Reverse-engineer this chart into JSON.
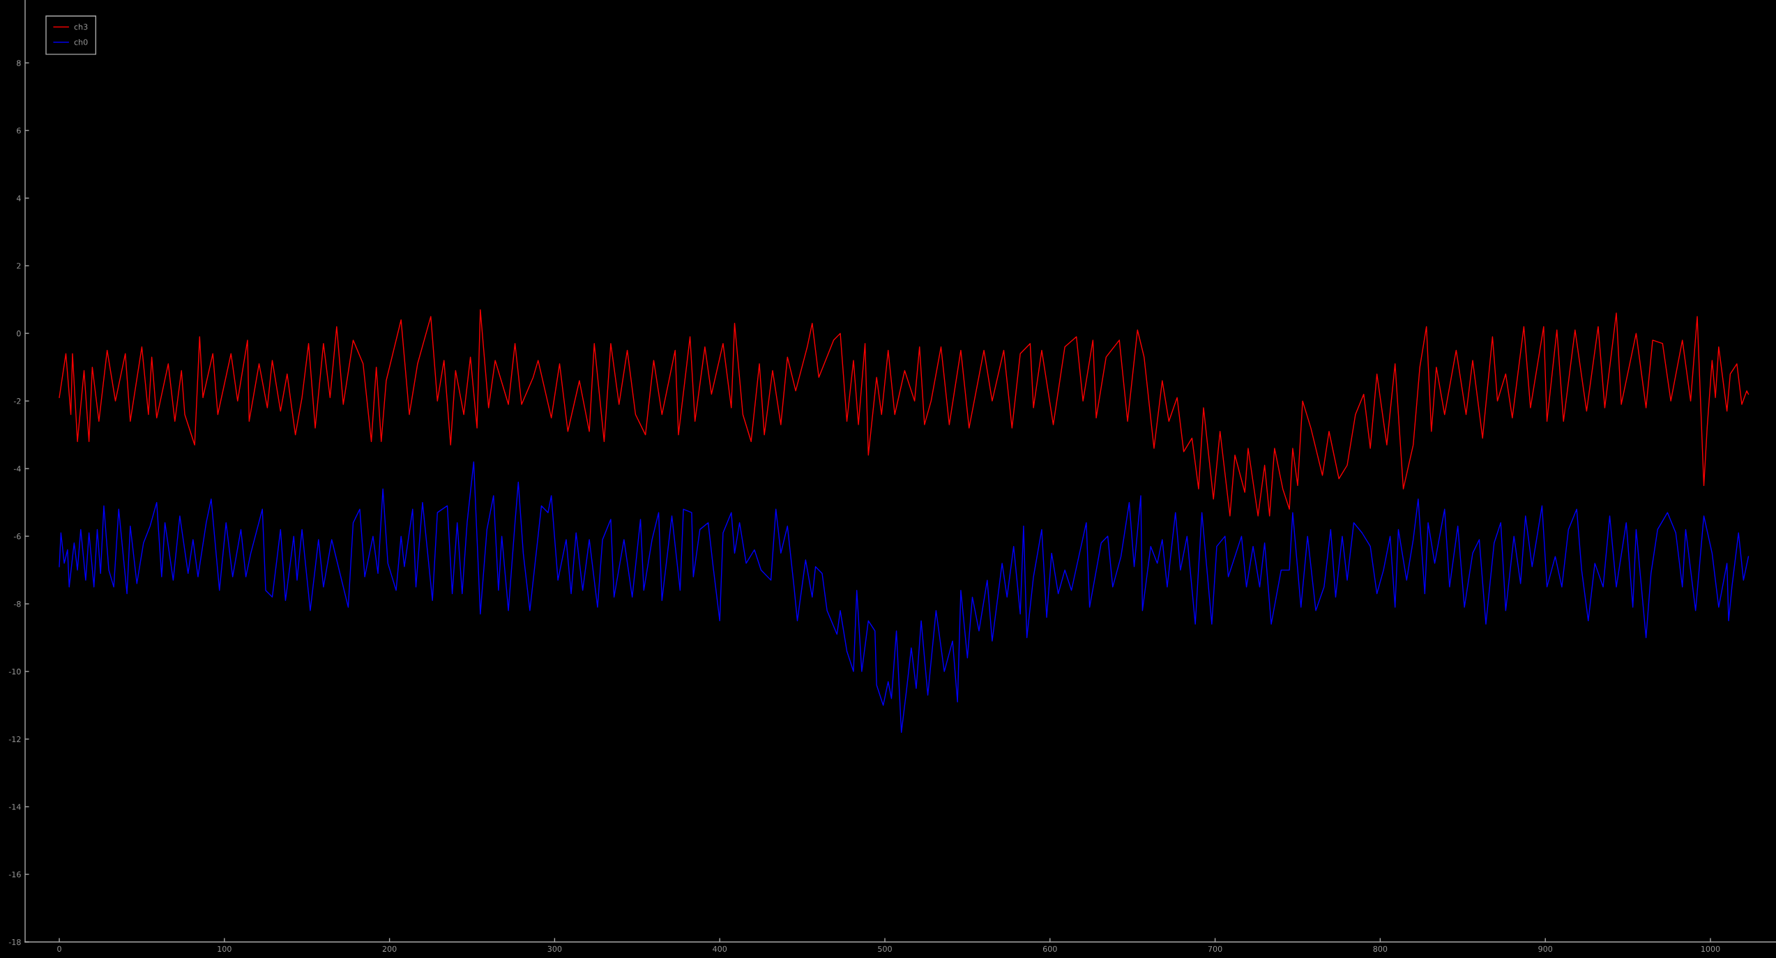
{
  "chart_data": {
    "type": "line",
    "series": [
      {
        "name": "ch3",
        "color": "#ff0000",
        "x": [
          0,
          4,
          7,
          8,
          11,
          15,
          18,
          20,
          24,
          29,
          34,
          40,
          43,
          50,
          54,
          56,
          59,
          66,
          70,
          74,
          76,
          82,
          85,
          87,
          93,
          96,
          104,
          108,
          114,
          115,
          121,
          126,
          129,
          134,
          138,
          143,
          147,
          151,
          155,
          160,
          164,
          168,
          172,
          178,
          184,
          189,
          192,
          195,
          198,
          207,
          212,
          217,
          225,
          229,
          233,
          237,
          240,
          245,
          249,
          253,
          255,
          260,
          264,
          272,
          276,
          280,
          287,
          290,
          298,
          303,
          308,
          315,
          321,
          324,
          330,
          334,
          339,
          344,
          349,
          355,
          360,
          365,
          373,
          375,
          382,
          385,
          391,
          395,
          402,
          407,
          409,
          414,
          419,
          424,
          427,
          432,
          437,
          441,
          446,
          453,
          456,
          460,
          469,
          473,
          477,
          481,
          484,
          488,
          490,
          495,
          498,
          502,
          506,
          512,
          518,
          521,
          524,
          528,
          534,
          539,
          546,
          551,
          560,
          565,
          572,
          577,
          582,
          588,
          590,
          595,
          602,
          609,
          616,
          620,
          626,
          628,
          634,
          642,
          647,
          653,
          657,
          663,
          668,
          672,
          677,
          681,
          686,
          690,
          693,
          699,
          703,
          709,
          712,
          718,
          720,
          726,
          730,
          733,
          736,
          741,
          745,
          747,
          750,
          753,
          758,
          765,
          769,
          775,
          780,
          785,
          790,
          794,
          798,
          804,
          809,
          814,
          820,
          824,
          828,
          831,
          834,
          839,
          846,
          852,
          856,
          862,
          868,
          871,
          876,
          880,
          887,
          891,
          899,
          901,
          907,
          911,
          918,
          925,
          932,
          936,
          943,
          946,
          955,
          961,
          965,
          971,
          976,
          983,
          988,
          992,
          996,
          998,
          1001,
          1003,
          1005,
          1010,
          1012,
          1016,
          1019,
          1022,
          1023
        ],
        "values": [
          -1.9,
          -0.6,
          -2.4,
          -0.6,
          -3.2,
          -1.1,
          -3.2,
          -1.0,
          -2.6,
          -0.5,
          -2.0,
          -0.6,
          -2.6,
          -0.4,
          -2.4,
          -0.7,
          -2.5,
          -0.9,
          -2.6,
          -1.1,
          -2.4,
          -3.3,
          -0.1,
          -1.9,
          -0.6,
          -2.4,
          -0.6,
          -2.0,
          -0.2,
          -2.6,
          -0.9,
          -2.2,
          -0.8,
          -2.3,
          -1.2,
          -3.0,
          -1.9,
          -0.3,
          -2.8,
          -0.3,
          -1.9,
          0.2,
          -2.1,
          -0.2,
          -0.9,
          -3.2,
          -1.0,
          -3.2,
          -1.4,
          0.4,
          -2.4,
          -0.9,
          0.5,
          -2.0,
          -0.8,
          -3.3,
          -1.1,
          -2.4,
          -0.7,
          -2.8,
          0.7,
          -2.2,
          -0.8,
          -2.1,
          -0.3,
          -2.1,
          -1.3,
          -0.8,
          -2.5,
          -0.9,
          -2.9,
          -1.4,
          -2.9,
          -0.3,
          -3.2,
          -0.3,
          -2.1,
          -0.5,
          -2.4,
          -3.0,
          -0.8,
          -2.4,
          -0.5,
          -3.0,
          -0.1,
          -2.6,
          -0.4,
          -1.8,
          -0.3,
          -2.2,
          0.3,
          -2.4,
          -3.2,
          -0.9,
          -3.0,
          -1.1,
          -2.7,
          -0.7,
          -1.7,
          -0.4,
          0.3,
          -1.3,
          -0.2,
          0.0,
          -2.6,
          -0.8,
          -2.7,
          -0.3,
          -3.6,
          -1.3,
          -2.4,
          -0.5,
          -2.4,
          -1.1,
          -2.0,
          -0.4,
          -2.7,
          -2.0,
          -0.4,
          -2.7,
          -0.5,
          -2.8,
          -0.5,
          -2.0,
          -0.5,
          -2.8,
          -0.6,
          -0.3,
          -2.2,
          -0.5,
          -2.7,
          -0.4,
          -0.1,
          -2.0,
          -0.2,
          -2.5,
          -0.7,
          -0.2,
          -2.6,
          0.1,
          -0.7,
          -3.4,
          -1.4,
          -2.6,
          -1.9,
          -3.5,
          -3.1,
          -4.6,
          -2.2,
          -4.9,
          -2.9,
          -5.4,
          -3.6,
          -4.7,
          -3.4,
          -5.4,
          -3.9,
          -5.4,
          -3.4,
          -4.6,
          -5.2,
          -3.4,
          -4.5,
          -2.0,
          -2.8,
          -4.2,
          -2.9,
          -4.3,
          -3.9,
          -2.4,
          -1.8,
          -3.4,
          -1.2,
          -3.3,
          -0.9,
          -4.6,
          -3.3,
          -1.0,
          0.2,
          -2.9,
          -1.0,
          -2.4,
          -0.5,
          -2.4,
          -0.8,
          -3.1,
          -0.1,
          -2.0,
          -1.2,
          -2.5,
          0.2,
          -2.2,
          0.2,
          -2.6,
          0.1,
          -2.6,
          0.1,
          -2.3,
          0.2,
          -2.2,
          0.6,
          -2.1,
          0.0,
          -2.2,
          -0.2,
          -0.3,
          -2.0,
          -0.2,
          -2.0,
          0.5,
          -4.5,
          -2.8,
          -0.8,
          -1.9,
          -0.4,
          -2.3,
          -1.2,
          -0.9,
          -2.1,
          -1.7,
          -1.8
        ]
      },
      {
        "name": "ch0",
        "color": "#0000ff",
        "x": [
          0,
          1,
          3,
          5,
          6,
          9,
          11,
          13,
          16,
          18,
          21,
          23,
          25,
          27,
          30,
          33,
          36,
          41,
          43,
          47,
          51,
          55,
          59,
          62,
          64,
          69,
          73,
          78,
          81,
          84,
          89,
          92,
          97,
          101,
          105,
          110,
          113,
          116,
          123,
          125,
          129,
          134,
          137,
          142,
          144,
          147,
          152,
          157,
          160,
          165,
          168,
          175,
          178,
          182,
          185,
          190,
          193,
          196,
          199,
          204,
          207,
          209,
          214,
          216,
          220,
          226,
          229,
          235,
          238,
          241,
          244,
          247,
          251,
          255,
          259,
          263,
          266,
          268,
          272,
          276,
          278,
          281,
          285,
          292,
          296,
          298,
          302,
          307,
          310,
          313,
          317,
          321,
          326,
          329,
          334,
          336,
          342,
          347,
          352,
          354,
          359,
          363,
          365,
          371,
          376,
          378,
          383,
          384,
          388,
          393,
          396,
          400,
          402,
          407,
          409,
          412,
          416,
          421,
          425,
          431,
          434,
          437,
          441,
          445,
          447,
          452,
          456,
          458,
          462,
          465,
          471,
          473,
          477,
          481,
          483,
          486,
          490,
          494,
          495,
          499,
          502,
          504,
          507,
          510,
          513,
          516,
          519,
          522,
          526,
          531,
          536,
          541,
          544,
          546,
          550,
          553,
          557,
          562,
          565,
          571,
          574,
          578,
          582,
          584,
          586,
          590,
          595,
          598,
          601,
          605,
          609,
          613,
          617,
          622,
          624,
          631,
          635,
          638,
          643,
          648,
          651,
          655,
          656,
          661,
          665,
          668,
          671,
          676,
          679,
          683,
          688,
          692,
          698,
          701,
          706,
          708,
          716,
          719,
          723,
          727,
          730,
          734,
          740,
          745,
          747,
          752,
          756,
          761,
          766,
          770,
          773,
          777,
          780,
          784,
          789,
          794,
          798,
          802,
          806,
          809,
          811,
          816,
          820,
          823,
          827,
          829,
          833,
          839,
          842,
          847,
          851,
          856,
          860,
          864,
          869,
          873,
          876,
          881,
          885,
          888,
          892,
          898,
          901,
          906,
          910,
          914,
          919,
          922,
          926,
          930,
          935,
          939,
          943,
          949,
          953,
          955,
          961,
          964,
          968,
          974,
          979,
          983,
          985,
          991,
          996,
          1001,
          1005,
          1010,
          1011,
          1013,
          1017,
          1020,
          1023
        ],
        "values": [
          -6.9,
          -5.9,
          -6.8,
          -6.4,
          -7.5,
          -6.2,
          -7.0,
          -5.8,
          -7.3,
          -5.9,
          -7.5,
          -5.8,
          -7.1,
          -5.1,
          -7.0,
          -7.5,
          -5.2,
          -7.7,
          -5.7,
          -7.4,
          -6.2,
          -5.7,
          -5.0,
          -7.2,
          -5.6,
          -7.3,
          -5.4,
          -7.1,
          -6.1,
          -7.2,
          -5.6,
          -4.9,
          -7.6,
          -5.6,
          -7.2,
          -5.8,
          -7.2,
          -6.5,
          -5.2,
          -7.6,
          -7.8,
          -5.8,
          -7.9,
          -6.0,
          -7.3,
          -5.8,
          -8.2,
          -6.1,
          -7.5,
          -6.1,
          -6.7,
          -8.1,
          -5.6,
          -5.2,
          -7.2,
          -6.0,
          -7.1,
          -4.6,
          -6.8,
          -7.6,
          -6.0,
          -6.9,
          -5.2,
          -7.5,
          -5.0,
          -7.9,
          -5.3,
          -5.1,
          -7.7,
          -5.6,
          -7.7,
          -5.6,
          -3.8,
          -8.3,
          -5.8,
          -4.8,
          -7.6,
          -6.0,
          -8.2,
          -5.6,
          -4.4,
          -6.5,
          -8.2,
          -5.1,
          -5.3,
          -4.8,
          -7.3,
          -6.1,
          -7.7,
          -5.9,
          -7.6,
          -6.1,
          -8.1,
          -6.1,
          -5.5,
          -7.8,
          -6.1,
          -7.8,
          -5.5,
          -7.6,
          -6.1,
          -5.3,
          -7.9,
          -5.4,
          -7.6,
          -5.2,
          -5.3,
          -7.2,
          -5.8,
          -5.6,
          -6.9,
          -8.5,
          -5.9,
          -5.3,
          -6.5,
          -5.6,
          -6.8,
          -6.4,
          -7.0,
          -7.3,
          -5.2,
          -6.5,
          -5.7,
          -7.5,
          -8.5,
          -6.7,
          -7.8,
          -6.9,
          -7.1,
          -8.2,
          -8.9,
          -8.2,
          -9.4,
          -10.0,
          -7.6,
          -10.0,
          -8.5,
          -8.8,
          -10.4,
          -11.0,
          -10.3,
          -10.8,
          -8.8,
          -11.8,
          -10.6,
          -9.3,
          -10.5,
          -8.5,
          -10.7,
          -8.2,
          -10.0,
          -9.1,
          -10.9,
          -7.6,
          -9.6,
          -7.8,
          -8.8,
          -7.3,
          -9.1,
          -6.8,
          -7.8,
          -6.3,
          -8.3,
          -5.7,
          -9.0,
          -7.2,
          -5.8,
          -8.4,
          -6.5,
          -7.7,
          -7.0,
          -7.6,
          -6.7,
          -5.6,
          -8.1,
          -6.2,
          -6.0,
          -7.5,
          -6.6,
          -5.0,
          -6.9,
          -4.8,
          -8.2,
          -6.3,
          -6.8,
          -6.1,
          -7.5,
          -5.3,
          -7.0,
          -6.0,
          -8.6,
          -5.3,
          -8.6,
          -6.3,
          -6.0,
          -7.2,
          -6.0,
          -7.5,
          -6.3,
          -7.5,
          -6.2,
          -8.6,
          -7.0,
          -7.0,
          -5.3,
          -8.1,
          -6.0,
          -8.2,
          -7.5,
          -5.8,
          -7.8,
          -6.0,
          -7.3,
          -5.6,
          -5.9,
          -6.3,
          -7.7,
          -7.0,
          -6.0,
          -8.1,
          -5.8,
          -7.3,
          -6.1,
          -4.9,
          -7.7,
          -5.6,
          -6.8,
          -5.2,
          -7.5,
          -5.7,
          -8.1,
          -6.5,
          -6.1,
          -8.6,
          -6.2,
          -5.6,
          -8.2,
          -6.0,
          -7.4,
          -5.4,
          -6.9,
          -5.1,
          -7.5,
          -6.6,
          -7.5,
          -5.8,
          -5.2,
          -7.0,
          -8.5,
          -6.8,
          -7.5,
          -5.4,
          -7.5,
          -5.6,
          -8.1,
          -5.8,
          -9.0,
          -7.1,
          -5.8,
          -5.3,
          -5.9,
          -7.5,
          -5.8,
          -8.2,
          -5.4,
          -6.5,
          -8.1,
          -6.8,
          -8.5,
          -7.5,
          -5.9,
          -7.3,
          -6.6
        ]
      }
    ],
    "xlim": [
      -20.7,
      1039.7
    ],
    "ylim": [
      -18,
      9.86
    ],
    "xticks": [
      0,
      100,
      200,
      300,
      400,
      500,
      600,
      700,
      800,
      900,
      1000
    ],
    "yticks": [
      -18,
      -16,
      -14,
      -12,
      -10,
      -8,
      -6,
      -4,
      -2,
      0,
      2,
      4,
      6,
      8
    ],
    "grid": false,
    "legend": "top left",
    "marker": "none",
    "line_style": "solid"
  }
}
